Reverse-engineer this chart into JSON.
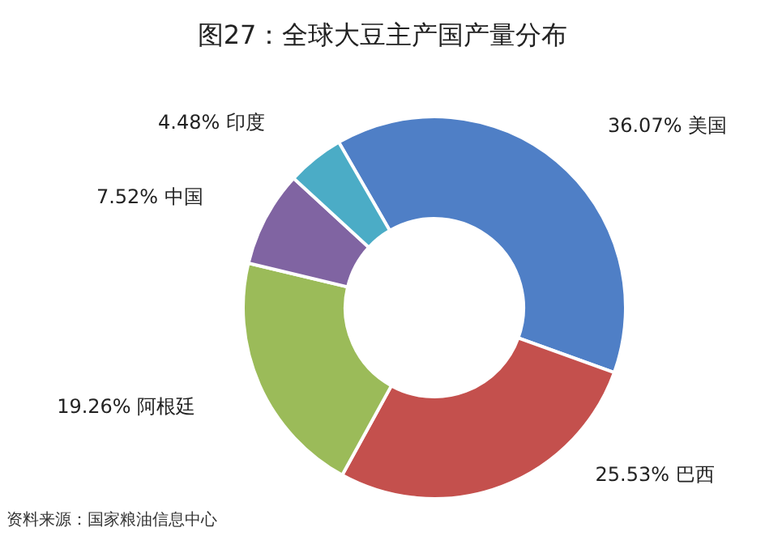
{
  "chart_data": {
    "type": "donut",
    "title": "图27：全球大豆主产国产量分布",
    "categories": [
      "美国",
      "巴西",
      "阿根廷",
      "中国",
      "印度"
    ],
    "values": [
      36.07,
      25.53,
      19.26,
      7.52,
      4.48
    ],
    "value_labels": [
      "36.07%",
      "25.53%",
      "19.26%",
      "7.52%",
      "4.48%"
    ],
    "colors": [
      "#4f7fc6",
      "#c4504d",
      "#9bbb59",
      "#8064a2",
      "#4bacc6"
    ],
    "annotations": [
      "资料来源：国家粮油信息中心"
    ]
  }
}
